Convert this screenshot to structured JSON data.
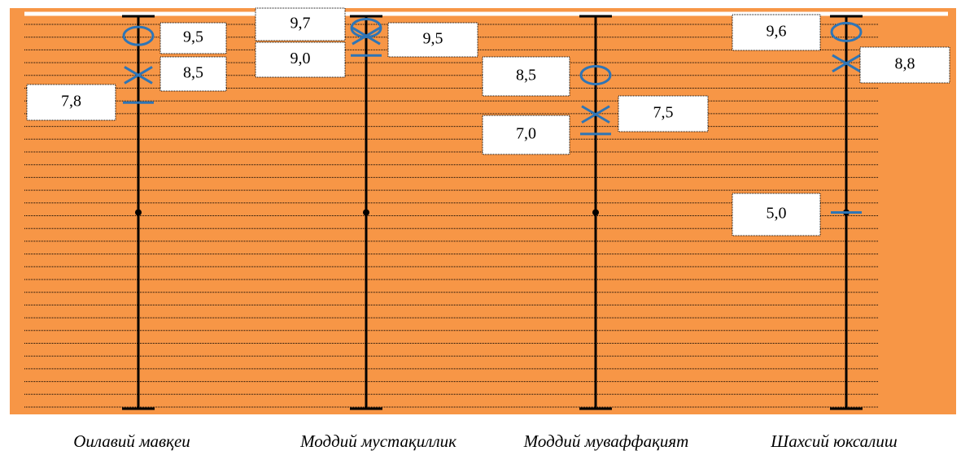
{
  "chart_data": {
    "type": "scale",
    "categories": [
      "Оилавий мавқеи",
      "Моддий мустақиллик",
      "Моддий муваффақият",
      "Шахсий юксалиш"
    ],
    "ylim": [
      0,
      10
    ],
    "series": [
      {
        "marker": "circle",
        "color": "#2e75b6",
        "values": [
          9.5,
          9.7,
          8.5,
          9.6
        ],
        "value_labels": [
          "9,5",
          "9,7",
          "8,5",
          "9,6"
        ]
      },
      {
        "marker": "cross",
        "color": "#2e75b6",
        "values": [
          8.5,
          9.5,
          7.5,
          8.8
        ],
        "value_labels": [
          "8,5",
          "9,5",
          "7,5",
          "8,8"
        ]
      },
      {
        "marker": "dash",
        "color": "#2e75b6",
        "values": [
          7.8,
          9.0,
          7.0,
          5.0
        ],
        "value_labels": [
          "7,8",
          "9,0",
          "7,0",
          "5,0"
        ]
      }
    ]
  }
}
